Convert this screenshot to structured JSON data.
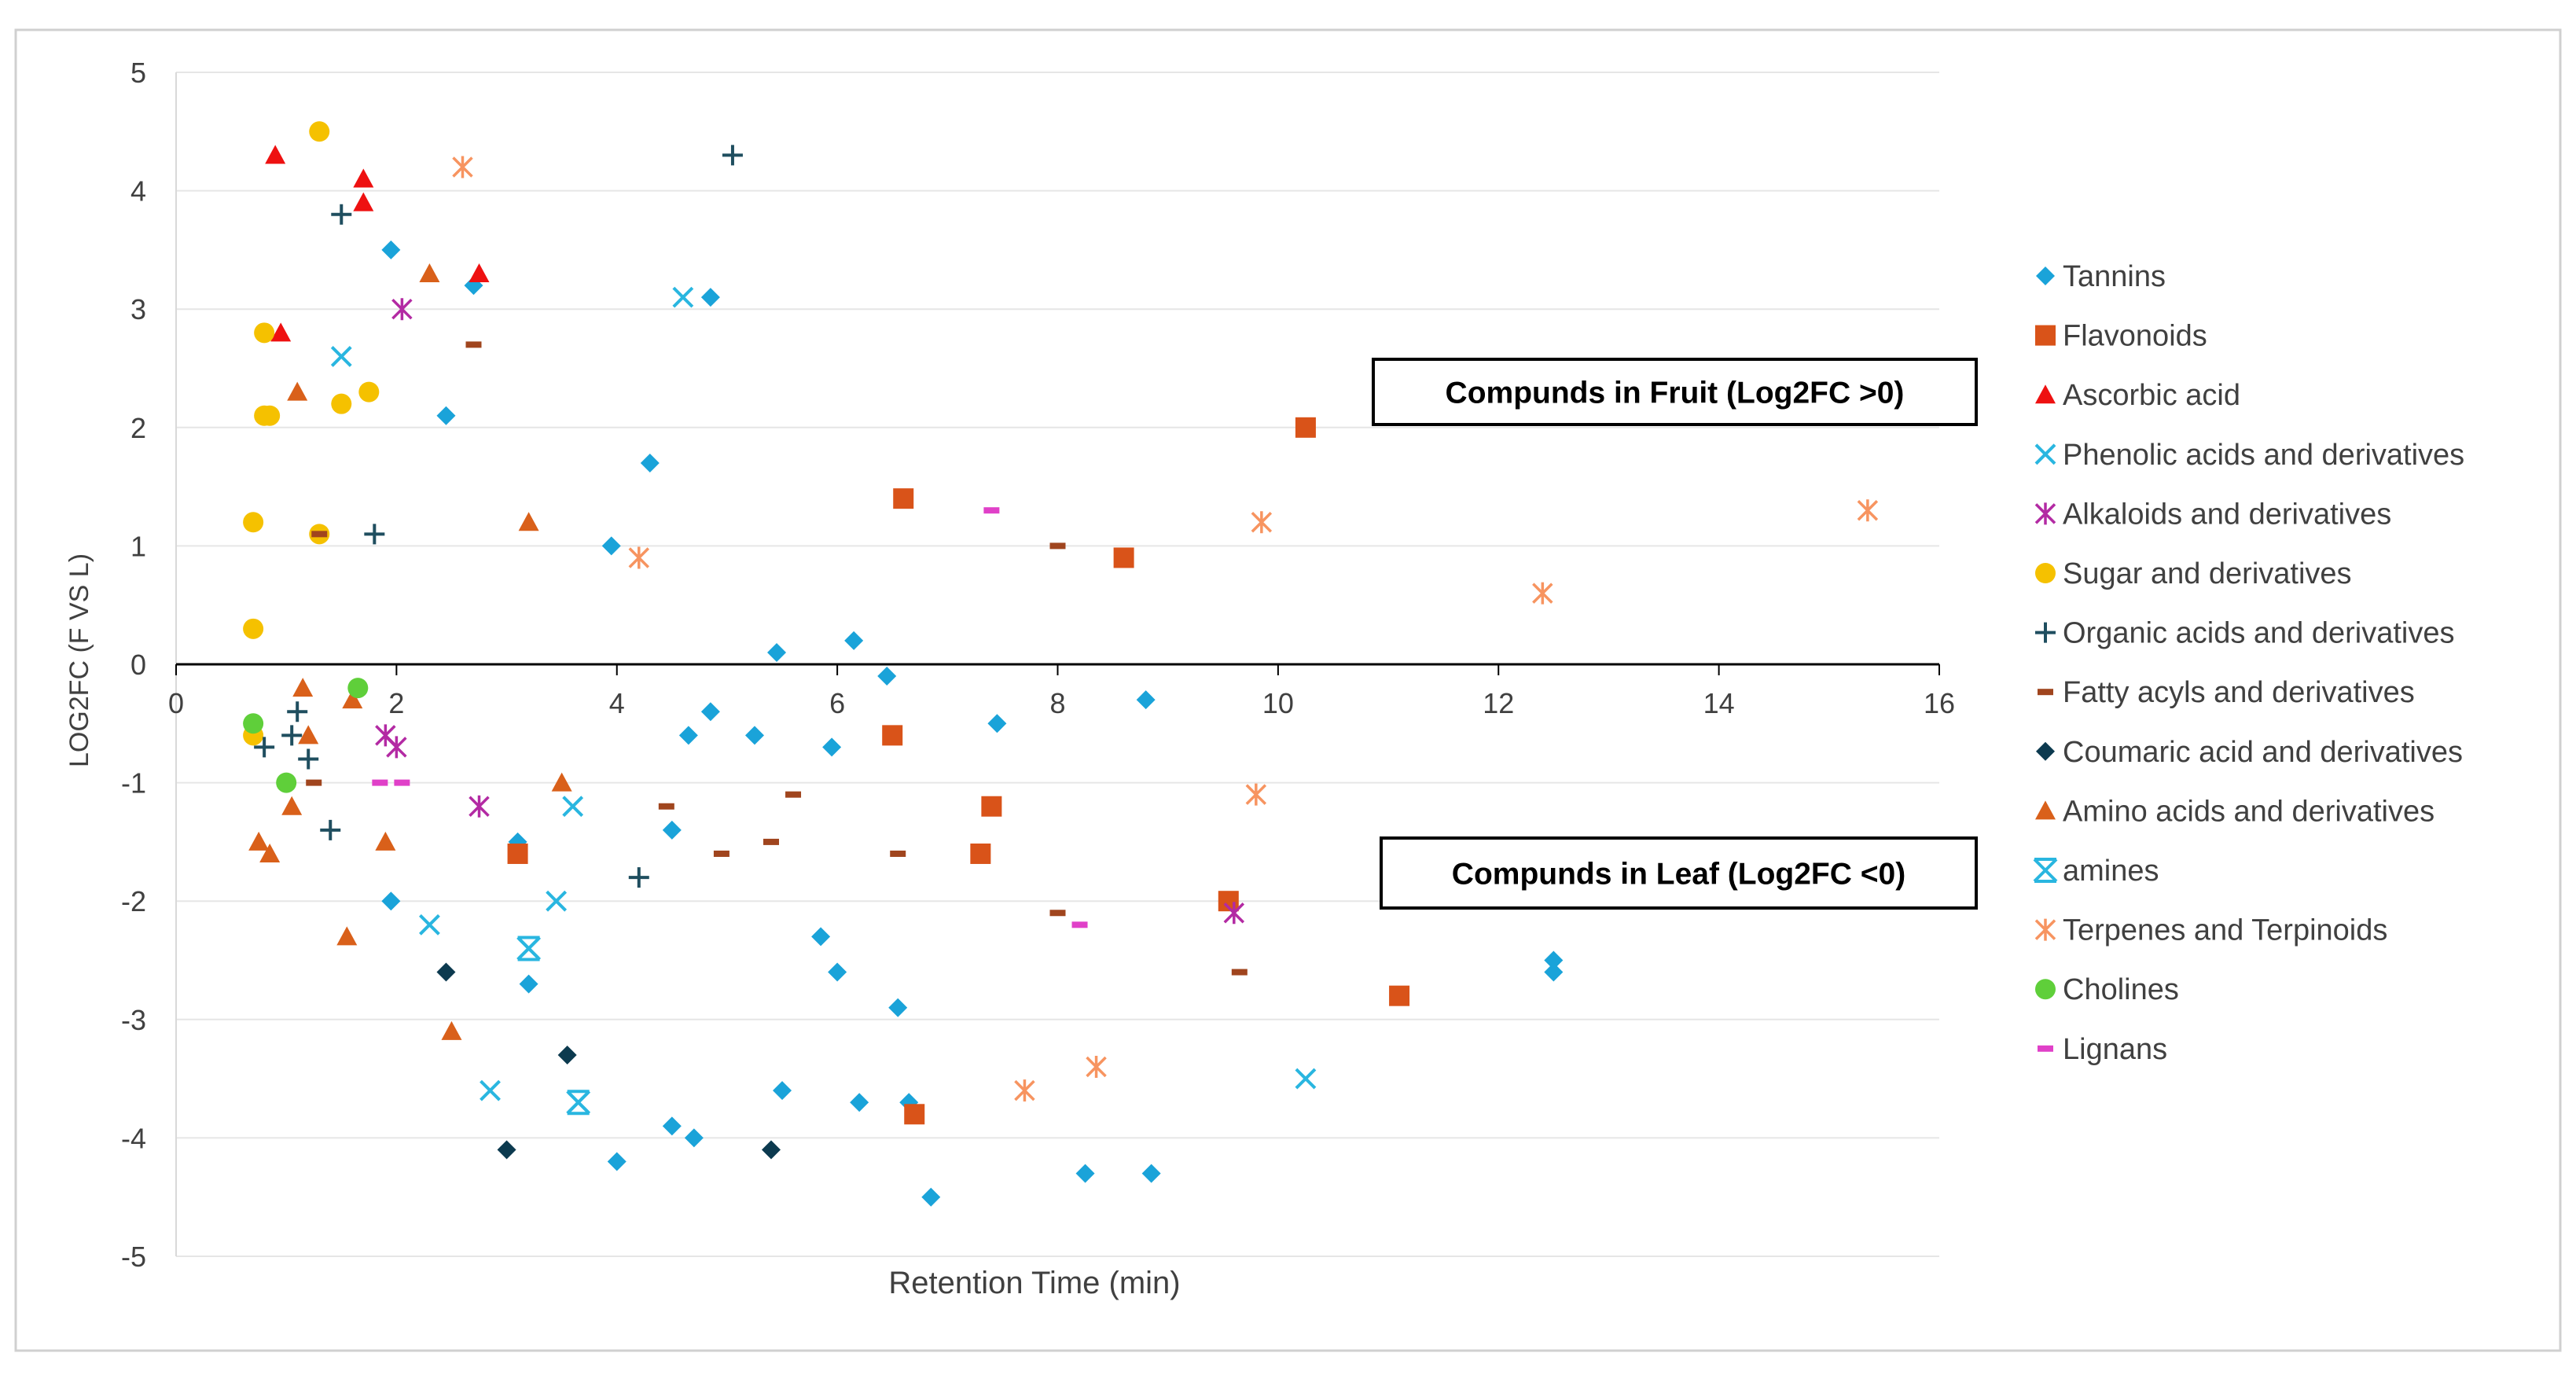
{
  "chart_data": {
    "type": "scatter",
    "title": "",
    "xlabel": "Retention Time (min)",
    "ylabel": "LOG2FC (F VS L)",
    "xlim": [
      0,
      16
    ],
    "ylim": [
      -5,
      5
    ],
    "xticks": [
      "0",
      "2",
      "4",
      "6",
      "8",
      "10",
      "12",
      "14",
      "16"
    ],
    "yticks": [
      "5",
      "4",
      "3",
      "2",
      "1",
      "0",
      "-1",
      "-2",
      "-3",
      "-4",
      "-5"
    ],
    "grid": "horizontal",
    "legend_position": "right",
    "annotations": [
      {
        "text": "Compunds  in Fruit (Log2FC >0)",
        "x": 11.5,
        "y": 2.3
      },
      {
        "text": "Compunds  in Leaf (Log2FC <0)",
        "x": 11.5,
        "y": -1.8
      }
    ],
    "series": [
      {
        "name": "Tannins",
        "marker": "diamond",
        "color": "#1aa3d9",
        "points": [
          [
            1.95,
            3.5
          ],
          [
            2.7,
            3.2
          ],
          [
            2.45,
            2.1
          ],
          [
            4.3,
            1.7
          ],
          [
            3.95,
            1.0
          ],
          [
            4.85,
            3.1
          ],
          [
            5.45,
            0.1
          ],
          [
            6.15,
            0.2
          ],
          [
            6.45,
            -0.1
          ],
          [
            4.85,
            -0.4
          ],
          [
            4.65,
            -0.6
          ],
          [
            5.25,
            -0.6
          ],
          [
            5.95,
            -0.7
          ],
          [
            7.45,
            -0.5
          ],
          [
            8.8,
            -0.3
          ],
          [
            4.5,
            -1.4
          ],
          [
            3.1,
            -1.5
          ],
          [
            1.95,
            -2.0
          ],
          [
            3.2,
            -2.7
          ],
          [
            5.85,
            -2.3
          ],
          [
            6.0,
            -2.6
          ],
          [
            6.55,
            -2.9
          ],
          [
            5.5,
            -3.6
          ],
          [
            6.2,
            -3.7
          ],
          [
            6.65,
            -3.7
          ],
          [
            4.5,
            -3.9
          ],
          [
            4.7,
            -4.0
          ],
          [
            4.0,
            -4.2
          ],
          [
            6.85,
            -4.5
          ],
          [
            8.25,
            -4.3
          ],
          [
            8.85,
            -4.3
          ],
          [
            12.5,
            -2.5
          ],
          [
            12.5,
            -2.6
          ]
        ]
      },
      {
        "name": "Flavonoids",
        "marker": "square",
        "color": "#d95319",
        "points": [
          [
            6.6,
            1.4
          ],
          [
            10.25,
            2.0
          ],
          [
            8.6,
            0.9
          ],
          [
            6.5,
            -0.6
          ],
          [
            7.4,
            -1.2
          ],
          [
            3.1,
            -1.6
          ],
          [
            7.3,
            -1.6
          ],
          [
            9.55,
            -2.0
          ],
          [
            11.1,
            -2.8
          ],
          [
            6.7,
            -3.8
          ]
        ]
      },
      {
        "name": "Ascorbic acid",
        "marker": "triangle",
        "color": "#ee1111",
        "points": [
          [
            0.9,
            4.3
          ],
          [
            1.7,
            4.1
          ],
          [
            1.7,
            3.9
          ],
          [
            0.95,
            2.8
          ],
          [
            2.75,
            3.3
          ]
        ]
      },
      {
        "name": "Phenolic acids and  derivatives",
        "marker": "x",
        "color": "#29b6e0",
        "points": [
          [
            4.6,
            3.1
          ],
          [
            1.5,
            2.6
          ],
          [
            3.6,
            -1.2
          ],
          [
            3.45,
            -2.0
          ],
          [
            2.3,
            -2.2
          ],
          [
            3.2,
            -2.4
          ],
          [
            2.85,
            -3.6
          ],
          [
            3.65,
            -3.7
          ],
          [
            10.25,
            -3.5
          ]
        ]
      },
      {
        "name": "Alkaloids and derivatives",
        "marker": "star",
        "color": "#b32aa3",
        "points": [
          [
            2.05,
            3.0
          ],
          [
            1.9,
            -0.6
          ],
          [
            2.0,
            -0.7
          ],
          [
            2.75,
            -1.2
          ],
          [
            9.6,
            -2.1
          ]
        ]
      },
      {
        "name": "Sugar and derivatives",
        "marker": "circle",
        "color": "#f5c100",
        "points": [
          [
            1.3,
            4.5
          ],
          [
            0.8,
            2.8
          ],
          [
            0.8,
            2.1
          ],
          [
            0.85,
            2.1
          ],
          [
            1.5,
            2.2
          ],
          [
            1.75,
            2.3
          ],
          [
            0.7,
            1.2
          ],
          [
            1.3,
            1.1
          ],
          [
            0.7,
            0.3
          ],
          [
            0.7,
            -0.6
          ]
        ]
      },
      {
        "name": "Organic acids and derivatives",
        "marker": "plus",
        "color": "#1f4e5f",
        "points": [
          [
            5.05,
            4.3
          ],
          [
            1.5,
            3.8
          ],
          [
            1.8,
            1.1
          ],
          [
            1.1,
            -0.4
          ],
          [
            1.05,
            -0.6
          ],
          [
            0.8,
            -0.7
          ],
          [
            1.2,
            -0.8
          ],
          [
            1.4,
            -1.4
          ],
          [
            4.2,
            -1.8
          ]
        ]
      },
      {
        "name": "Fatty acyls and derivatives",
        "marker": "dash",
        "color": "#a0451e",
        "points": [
          [
            2.7,
            2.7
          ],
          [
            1.3,
            1.1
          ],
          [
            8.0,
            1.0
          ],
          [
            1.25,
            -1.0
          ],
          [
            4.45,
            -1.2
          ],
          [
            5.6,
            -1.1
          ],
          [
            4.95,
            -1.6
          ],
          [
            5.4,
            -1.5
          ],
          [
            6.55,
            -1.6
          ],
          [
            8.0,
            -2.1
          ],
          [
            9.65,
            -2.6
          ]
        ]
      },
      {
        "name": "Coumaric acid and derivatives",
        "marker": "diamond",
        "color": "#0c3a4f",
        "points": [
          [
            2.45,
            -2.6
          ],
          [
            3.55,
            -3.3
          ],
          [
            3.0,
            -4.1
          ],
          [
            5.4,
            -4.1
          ]
        ]
      },
      {
        "name": "Amino acids and derivatives",
        "marker": "triangle",
        "color": "#d9601a",
        "points": [
          [
            2.3,
            3.3
          ],
          [
            1.1,
            2.3
          ],
          [
            3.2,
            1.2
          ],
          [
            1.15,
            -0.2
          ],
          [
            1.6,
            -0.3
          ],
          [
            1.2,
            -0.6
          ],
          [
            1.05,
            -1.2
          ],
          [
            3.5,
            -1.0
          ],
          [
            0.75,
            -1.5
          ],
          [
            0.85,
            -1.6
          ],
          [
            1.9,
            -1.5
          ],
          [
            1.55,
            -2.3
          ],
          [
            2.5,
            -3.1
          ]
        ]
      },
      {
        "name": "amines",
        "marker": "xbox",
        "color": "#29b6e0",
        "points": [
          [
            3.2,
            -2.4
          ],
          [
            3.65,
            -3.7
          ]
        ]
      },
      {
        "name": "Terpenes and Terpinoids",
        "marker": "star",
        "color": "#f79460",
        "points": [
          [
            2.6,
            4.2
          ],
          [
            4.2,
            0.9
          ],
          [
            9.85,
            1.2
          ],
          [
            12.4,
            0.6
          ],
          [
            15.35,
            1.3
          ],
          [
            9.8,
            -1.1
          ],
          [
            7.7,
            -3.6
          ],
          [
            8.35,
            -3.4
          ]
        ]
      },
      {
        "name": "Cholines",
        "marker": "circle",
        "color": "#5fcf3a",
        "points": [
          [
            1.65,
            -0.2
          ],
          [
            0.7,
            -0.5
          ],
          [
            1.0,
            -1.0
          ]
        ]
      },
      {
        "name": "Lignans",
        "marker": "dash",
        "color": "#e040c8",
        "points": [
          [
            7.4,
            1.3
          ],
          [
            1.85,
            -1.0
          ],
          [
            2.05,
            -1.0
          ],
          [
            8.2,
            -2.2
          ]
        ]
      }
    ]
  }
}
